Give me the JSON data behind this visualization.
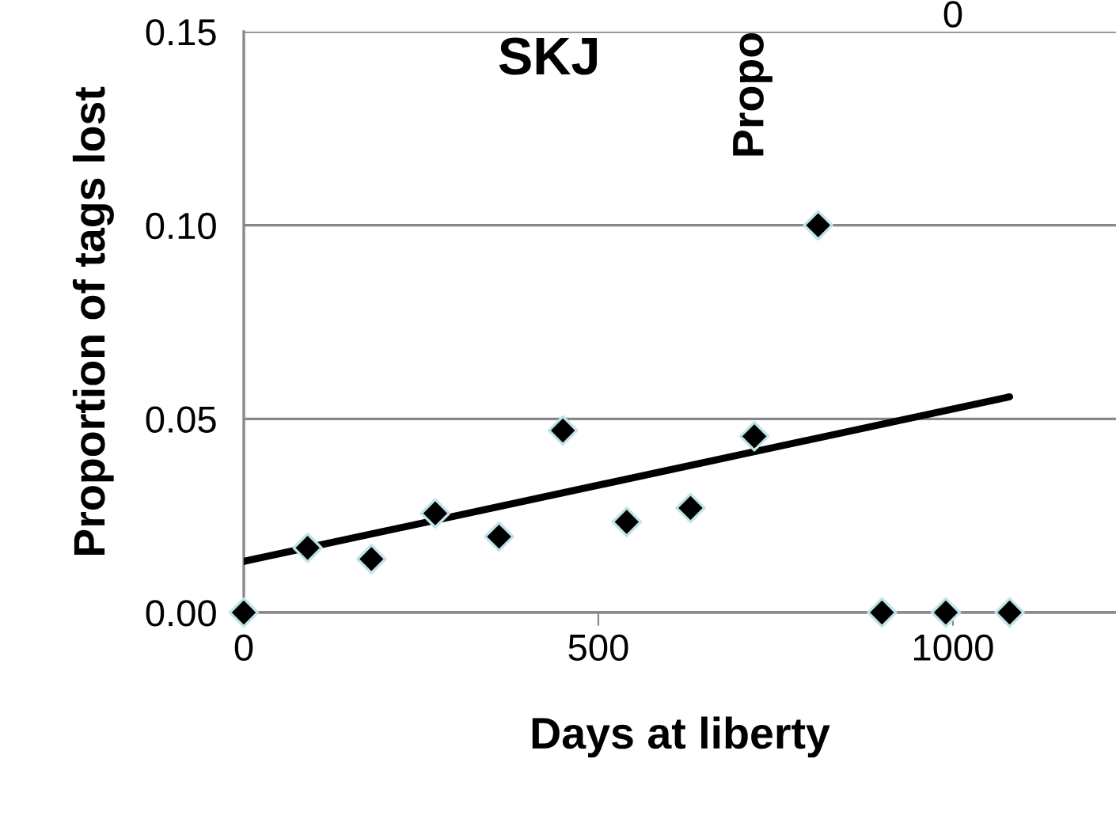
{
  "chart_data": {
    "type": "scatter",
    "title": "SKJ",
    "xlabel": "Days at liberty",
    "ylabel": "Proportion of tags lost",
    "annotations": [
      "Propo",
      "0"
    ],
    "series": [
      {
        "color": "#000000",
        "marker": "diamond",
        "x": [
          0,
          90,
          180,
          270,
          360,
          450,
          540,
          630,
          720,
          810,
          900,
          990,
          1080
        ],
        "values": [
          0,
          0.0167,
          0.0138,
          0.0256,
          0.0196,
          0.047,
          0.0234,
          0.027,
          0.0455,
          0.1,
          0,
          0,
          0
        ]
      },
      {
        "type": "line",
        "color": "#000000",
        "marker": "none",
        "x": [
          0,
          1080
        ],
        "values": [
          0.0132,
          0.0557
        ]
      }
    ],
    "xlim": [
      0,
      1230
    ],
    "ylim": [
      0,
      0.15
    ],
    "xticks": [
      0,
      500,
      1000
    ],
    "yticks": [
      {
        "value": 0,
        "label": "0.00"
      },
      {
        "value": 0.05,
        "label": "0.05"
      },
      {
        "value": 0.1,
        "label": "0.10"
      },
      {
        "value": 0.15,
        "label": "0.15"
      }
    ],
    "grid": "y",
    "legend": false
  }
}
